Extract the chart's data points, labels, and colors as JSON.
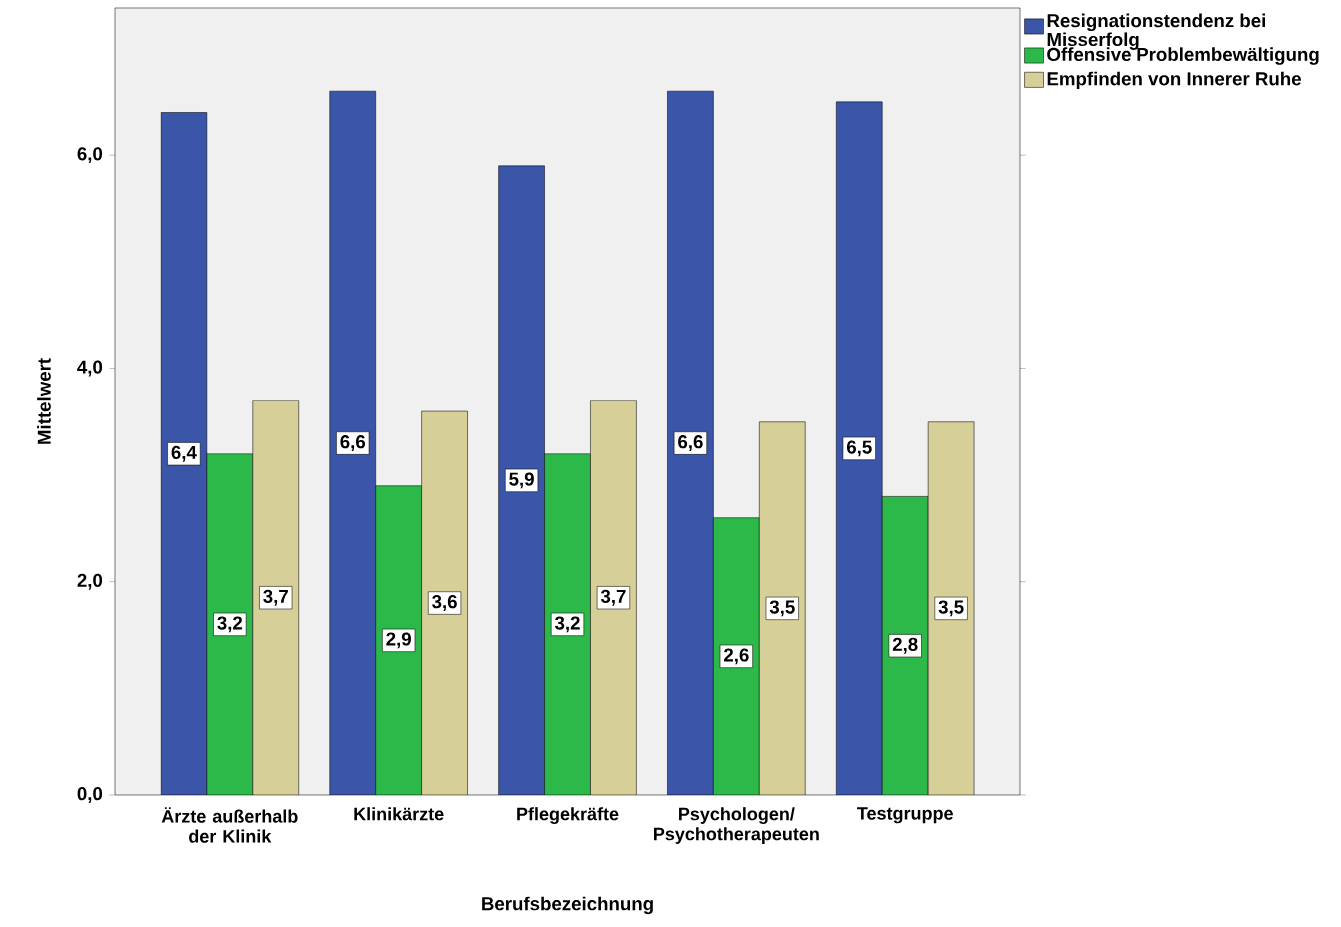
{
  "chart_data": {
    "type": "bar",
    "xlabel": "Berufsbezeichnung",
    "ylabel": "Mittelwert",
    "categories": [
      "Ärzte außerhalb der Klinik",
      "Klinikärzte",
      "Pflegekräfte",
      "Psychologen/ Psychotherapeuten",
      "Testgruppe"
    ],
    "series": [
      {
        "name": "Resignationstendenz bei Misserfolg",
        "color": "#3b55a8",
        "values": [
          6.4,
          6.6,
          5.9,
          6.6,
          6.5
        ],
        "value_labels": [
          "6,4",
          "6,6",
          "5,9",
          "6,6",
          "6,5"
        ]
      },
      {
        "name": "Offensive Problembewältigung",
        "color": "#2db84a",
        "values": [
          3.2,
          2.9,
          3.2,
          2.6,
          2.8
        ],
        "value_labels": [
          "3,2",
          "2,9",
          "3,2",
          "2,6",
          "2,8"
        ]
      },
      {
        "name": "Empfinden von Innerer Ruhe",
        "color": "#d6cf98",
        "values": [
          3.7,
          3.6,
          3.7,
          3.5,
          3.5
        ],
        "value_labels": [
          "3,7",
          "3,6",
          "3,7",
          "3,5",
          "3,5"
        ]
      }
    ],
    "ylim": [
      0,
      7.38
    ],
    "yticks": [
      {
        "value": 0,
        "label": "0,0"
      },
      {
        "value": 2,
        "label": "2,0"
      },
      {
        "value": 4,
        "label": "4,0"
      },
      {
        "value": 6,
        "label": "6,0"
      }
    ],
    "legend": "top right",
    "grid": false
  }
}
